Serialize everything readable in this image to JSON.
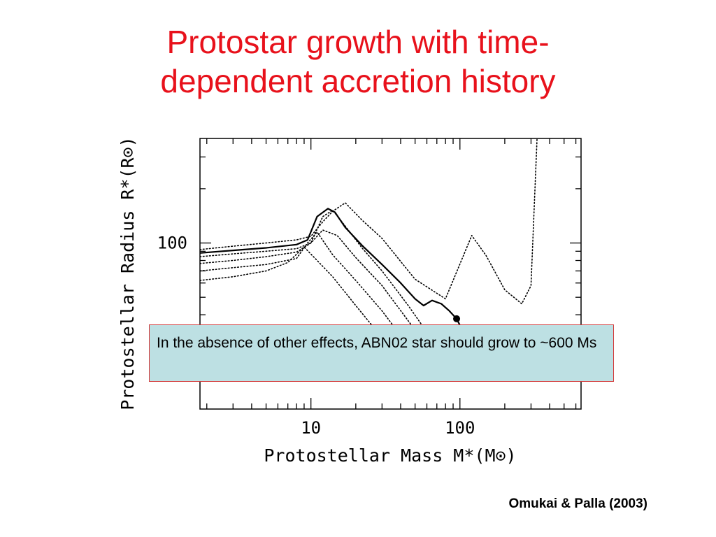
{
  "slide": {
    "title_line1": "Protostar growth with time-",
    "title_line2": "dependent accretion history",
    "callout_text": "In the absence of other effects, ABN02 star should grow to ~600 Ms",
    "citation": "Omukai & Palla (2003)"
  },
  "chart_data": {
    "type": "line",
    "title": "",
    "xlabel": "Protostellar Mass M*(M⊙)",
    "ylabel": "Protostellar Radius R*(R⊙)",
    "xscale": "log",
    "yscale": "log",
    "xlim": [
      1.8,
      650
    ],
    "ylim": [
      12,
      380
    ],
    "xticks": [
      10,
      100
    ],
    "xtick_labels": [
      "10",
      "100"
    ],
    "yticks": [
      100
    ],
    "ytick_labels": [
      "100"
    ],
    "grid": false,
    "legend": "none",
    "marker": {
      "x": 95,
      "y": 38
    },
    "series": [
      {
        "style": "solid",
        "x": [
          1.8,
          3,
          5,
          8,
          9.5,
          11,
          13,
          14.5,
          17,
          22,
          30,
          40,
          50,
          57,
          65,
          75,
          85,
          95,
          110,
          125
        ],
        "y": [
          88,
          91,
          94,
          98,
          104,
          140,
          155,
          148,
          122,
          97,
          76,
          60,
          49,
          45,
          48,
          46,
          42,
          38,
          30,
          22
        ]
      },
      {
        "style": "dotted",
        "x": [
          1.8,
          3,
          5,
          8,
          10,
          12,
          14,
          17,
          22,
          30,
          50,
          80,
          120,
          150,
          200,
          260,
          300,
          330
        ],
        "y": [
          92,
          96,
          100,
          104,
          109,
          131,
          150,
          167,
          134,
          106,
          63,
          49,
          110,
          85,
          55,
          46,
          58,
          400
        ]
      },
      {
        "style": "dotted",
        "x": [
          1.8,
          3,
          5,
          8,
          10,
          12,
          14,
          17,
          22,
          30,
          45,
          60,
          75
        ],
        "y": [
          84,
          87,
          90,
          93,
          100,
          140,
          152,
          124,
          94,
          70,
          45,
          32,
          25
        ]
      },
      {
        "style": "dotted",
        "x": [
          1.8,
          3,
          5,
          8,
          10,
          12,
          15,
          20,
          30,
          45,
          60
        ],
        "y": [
          77,
          80,
          84,
          89,
          100,
          118,
          110,
          83,
          58,
          37,
          27
        ]
      },
      {
        "style": "dotted",
        "x": [
          1.8,
          3,
          5,
          8,
          9.5,
          11,
          14,
          20,
          30,
          45
        ],
        "y": [
          70,
          73,
          76,
          82,
          100,
          115,
          86,
          62,
          42,
          27
        ]
      },
      {
        "style": "dotted",
        "x": [
          1.8,
          3,
          5,
          7,
          9,
          11,
          14,
          20,
          28,
          40
        ],
        "y": [
          62,
          65,
          70,
          78,
          95,
          80,
          65,
          45,
          32,
          22
        ]
      },
      {
        "style": "solid",
        "x": [
          500,
          580,
          650
        ],
        "y": [
          26,
          28,
          30
        ]
      }
    ]
  }
}
